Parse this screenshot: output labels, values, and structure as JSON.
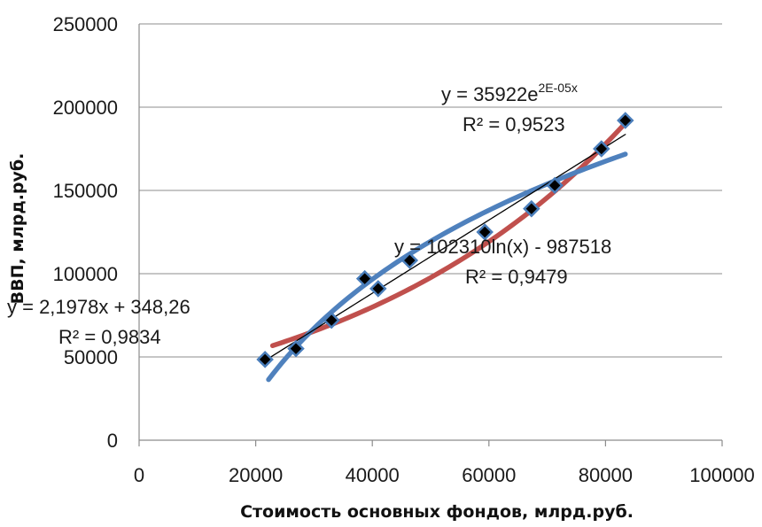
{
  "chart_data": {
    "type": "scatter",
    "xlabel": "Стоимость основных фондов, млрд.руб.",
    "ylabel": "ВВП, млрд.руб.",
    "xlim": [
      0,
      100000
    ],
    "ylim": [
      0,
      250000
    ],
    "x_ticks": [
      "0",
      "20000",
      "40000",
      "60000",
      "80000",
      "100000"
    ],
    "y_ticks": [
      "0",
      "50000",
      "100000",
      "150000",
      "200000",
      "250000"
    ],
    "grid": "horizontal",
    "series": [
      {
        "marker": "diamond",
        "marker_color": "#000000",
        "marker_edge_color": "#4a7ebb",
        "x": [
          21600,
          26900,
          33000,
          38700,
          41000,
          46400,
          59300,
          67300,
          71300,
          79300,
          83400
        ],
        "y": [
          48500,
          55000,
          72000,
          97000,
          91000,
          108000,
          125000,
          139000,
          153000,
          175000,
          192000
        ]
      }
    ],
    "trendlines": [
      {
        "kind": "linear",
        "color": "#000000",
        "a": 2.1978,
        "b": 348.26,
        "x_range": [
          21600,
          83400
        ],
        "equation_line1_a": "y",
        "equation_line1_b": " = 2,1978x + 348,26",
        "equation_line2": "R² = 0,9834"
      },
      {
        "kind": "exponential",
        "color": "#c0504d",
        "a": 35922,
        "b": 2e-05,
        "x_range": [
          22900,
          83400
        ],
        "equation_line1": "y = 35922e",
        "equation_line1_sup": "2E-05x",
        "equation_line2": "R² = 0,9523"
      },
      {
        "kind": "logarithmic",
        "color": "#4f81bd",
        "a": 102310,
        "b": -987518,
        "x_range": [
          22200,
          83400
        ],
        "equation_line1": "y = 102310ln(x) - 987518",
        "equation_line2": "R² = 0,9479"
      }
    ]
  }
}
